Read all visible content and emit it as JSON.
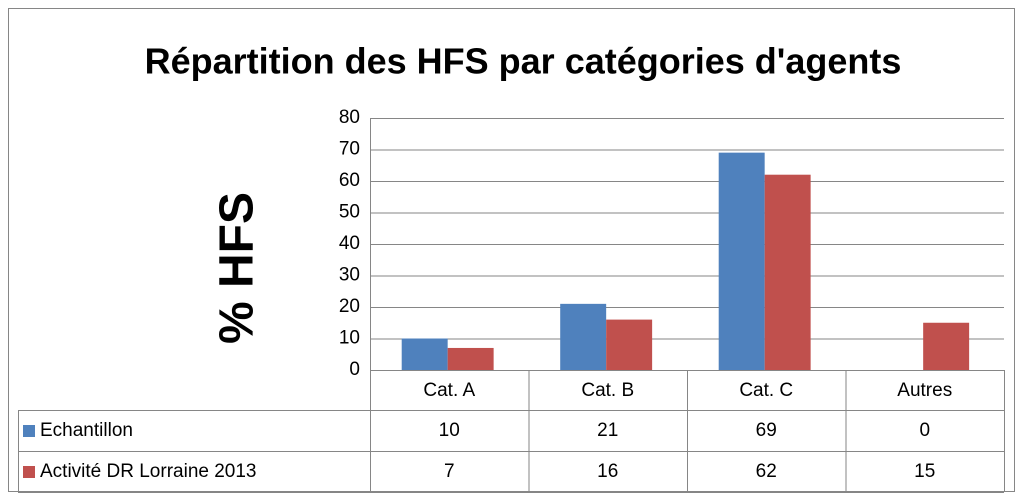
{
  "chart_data": {
    "type": "bar",
    "title": "Répartition des HFS par catégories d'agents",
    "y_label": "% HFS",
    "categories": [
      "Cat. A",
      "Cat. B",
      "Cat. C",
      "Autres"
    ],
    "series": [
      {
        "name": "Echantillon",
        "color": "#4f81bd",
        "values": [
          10,
          21,
          69,
          0
        ]
      },
      {
        "name": "Activité DR Lorraine 2013",
        "color": "#c0504d",
        "values": [
          7,
          16,
          62,
          15
        ]
      }
    ],
    "ylim": [
      0,
      80
    ],
    "yticks": [
      0,
      10,
      20,
      30,
      40,
      50,
      60,
      70,
      80
    ],
    "grid": true,
    "data_table": true
  }
}
